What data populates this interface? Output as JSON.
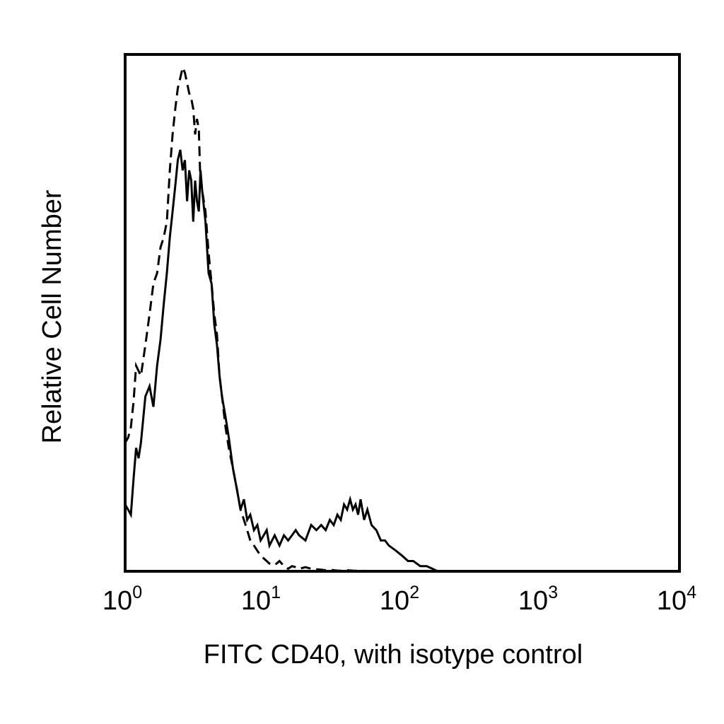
{
  "chart_data": {
    "type": "line",
    "title": "",
    "xlabel": "FITC CD40, with isotype control",
    "ylabel": "Relative Cell Number",
    "x_scale": "log",
    "xlim": [
      1,
      10000
    ],
    "ylim": [
      0,
      100
    ],
    "grid": false,
    "legend": "none",
    "x_ticks": [
      {
        "base": "10",
        "exp": "0"
      },
      {
        "base": "10",
        "exp": "1"
      },
      {
        "base": "10",
        "exp": "2"
      },
      {
        "base": "10",
        "exp": "3"
      },
      {
        "base": "10",
        "exp": "4"
      }
    ],
    "series": [
      {
        "style": "solid",
        "color": "#000000",
        "x": [
          1.0,
          1.05,
          1.1,
          1.15,
          1.2,
          1.25,
          1.3,
          1.4,
          1.5,
          1.6,
          1.7,
          1.8,
          1.9,
          2.0,
          2.1,
          2.2,
          2.3,
          2.4,
          2.5,
          2.6,
          2.7,
          2.8,
          2.9,
          3.0,
          3.1,
          3.2,
          3.3,
          3.4,
          3.5,
          3.6,
          3.8,
          4.0,
          4.2,
          4.4,
          4.6,
          4.8,
          5.0,
          5.3,
          5.6,
          6.0,
          6.4,
          6.8,
          7.2,
          7.6,
          8.0,
          8.5,
          9.0,
          9.5,
          10.0,
          10.5,
          11.0,
          12.0,
          13.0,
          14.0,
          15.0,
          16.0,
          17.0,
          18.0,
          20.0,
          22.0,
          24.0,
          26.0,
          28.0,
          30.0,
          32.0,
          34.0,
          36.0,
          38.0,
          40.0,
          42.0,
          44.0,
          46.0,
          48.0,
          50.0,
          53.0,
          56.0,
          60.0,
          65.0,
          70.0,
          75.0,
          80.0,
          90.0,
          100.0,
          110.0,
          120.0,
          135.0,
          150.0,
          165.0,
          180.0
        ],
        "y": [
          13,
          12,
          11,
          18,
          24,
          22,
          25,
          34,
          36,
          32,
          40,
          45,
          52,
          58,
          65,
          70,
          75,
          80,
          82,
          78,
          80,
          72,
          78,
          76,
          68,
          76,
          72,
          70,
          78,
          74,
          68,
          58,
          56,
          48,
          44,
          38,
          34,
          30,
          26,
          20,
          16,
          12,
          14,
          10,
          11,
          8,
          9,
          6,
          7,
          8,
          5,
          7,
          5,
          7,
          6,
          7,
          8,
          7,
          6,
          9,
          8,
          9,
          8,
          10,
          9,
          11,
          10,
          13,
          12,
          14,
          12,
          13,
          11,
          14,
          10,
          12,
          9,
          8,
          6,
          6,
          5,
          4,
          3,
          2,
          2,
          1,
          1,
          0.5,
          0
        ],
        "name": ""
      },
      {
        "style": "dashed",
        "color": "#000000",
        "x": [
          1.0,
          1.05,
          1.1,
          1.15,
          1.2,
          1.3,
          1.4,
          1.5,
          1.6,
          1.7,
          1.8,
          1.9,
          2.0,
          2.1,
          2.2,
          2.3,
          2.4,
          2.5,
          2.6,
          2.7,
          2.8,
          2.9,
          3.0,
          3.1,
          3.2,
          3.3,
          3.4,
          3.5,
          3.6,
          3.8,
          4.0,
          4.2,
          4.4,
          4.6,
          4.8,
          5.0,
          5.3,
          5.6,
          6.0,
          6.4,
          6.8,
          7.2,
          7.6,
          8.0,
          8.5,
          9.0,
          9.5,
          10.0,
          10.5,
          11.0,
          12.0,
          13.0,
          14.0,
          15.0,
          16.0,
          17.0,
          18.0,
          20.0,
          22.0,
          24.0,
          26.0,
          28.0,
          30.0,
          32.0,
          35.0,
          40.0,
          45.0,
          50.0,
          60.0,
          70.0,
          80.0
        ],
        "y": [
          25,
          26,
          28,
          33,
          40,
          38,
          44,
          50,
          56,
          58,
          63,
          65,
          68,
          78,
          85,
          90,
          94,
          96,
          98,
          97,
          95,
          93,
          92,
          90,
          85,
          88,
          86,
          75,
          74,
          70,
          62,
          56,
          50,
          46,
          38,
          34,
          28,
          24,
          20,
          16,
          12,
          10,
          8,
          6,
          5,
          4,
          3,
          2.5,
          2,
          1.5,
          1.2,
          2,
          1,
          0.5,
          1,
          0.8,
          0.5,
          0.8,
          0.5,
          0.4,
          0.3,
          0.2,
          0.3,
          0.2,
          0.1,
          0.2,
          0.1,
          0.1,
          0.05,
          0,
          0
        ],
        "name": ""
      }
    ]
  }
}
